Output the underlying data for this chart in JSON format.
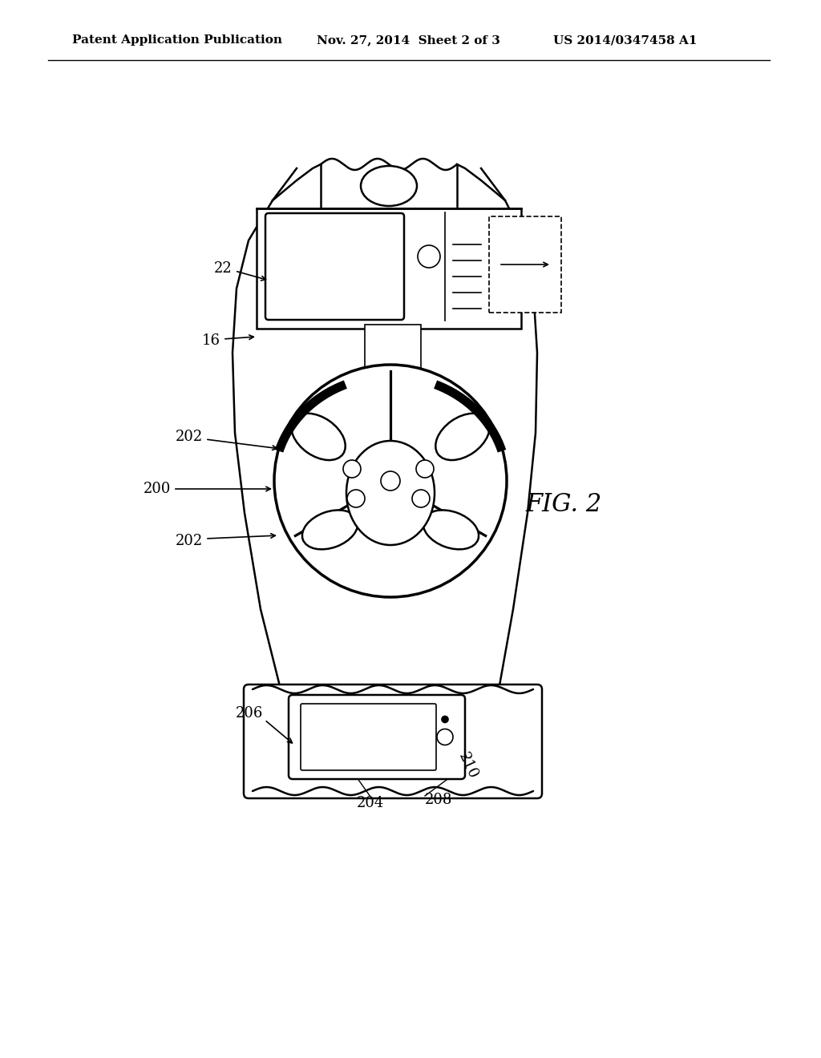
{
  "bg_color": "#ffffff",
  "line_color": "#000000",
  "header_left": "Patent Application Publication",
  "header_mid": "Nov. 27, 2014  Sheet 2 of 3",
  "header_right": "US 2014/0347458 A1",
  "fig_label": "FIG. 2",
  "lw": 1.8,
  "lw_thin": 1.2,
  "lw_thick": 2.5
}
